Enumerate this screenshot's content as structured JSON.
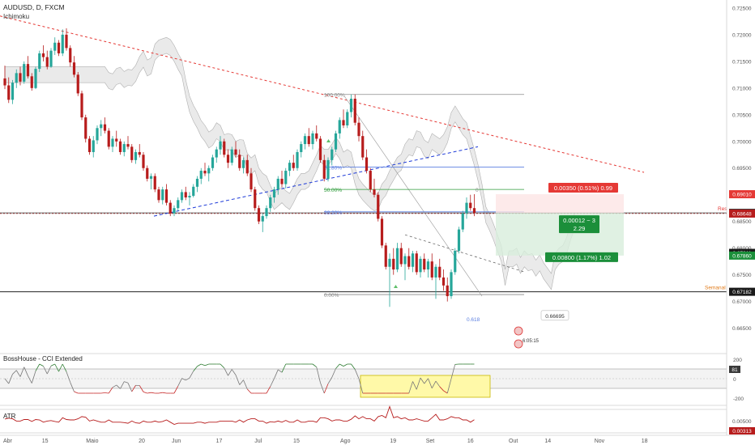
{
  "header": {
    "symbol": "AUDUSD, D, FXCM",
    "indicator": "Ichimoku"
  },
  "colors": {
    "up": "#26a69a",
    "down": "#b71c1c",
    "cloud": "#d9d9d9",
    "downtrend": "#e53935",
    "uptrend": "#1e3bd8",
    "cci_up": "#2e7d32",
    "cci_down": "#c62828",
    "atr": "#b71c1c",
    "highlight": "#fff9a8"
  },
  "panels": {
    "cci_label": "BossHouse - CCI Extended",
    "atr_label": "ATR"
  },
  "chart_data": {
    "type": "candlestick",
    "y_axis": {
      "ylim": [
        0.6613,
        0.7265
      ],
      "ticks": [
        "0.72500",
        "0.72000",
        "0.71500",
        "0.71000",
        "0.70500",
        "0.70000",
        "0.69500",
        "0.69000",
        "0.68500",
        "0.68000",
        "0.67500",
        "0.67000",
        "0.66500",
        "0.66000"
      ]
    },
    "x_axis": {
      "ticks": [
        {
          "label": "Abr",
          "day": 0
        },
        {
          "label": "15",
          "day": 14
        },
        {
          "label": "Maio",
          "day": 30
        },
        {
          "label": "20",
          "day": 49
        },
        {
          "label": "Jun",
          "day": 61
        },
        {
          "label": "17",
          "day": 77
        },
        {
          "label": "Jul",
          "day": 91
        },
        {
          "label": "15",
          "day": 105
        },
        {
          "label": "Ago",
          "day": 122
        },
        {
          "label": "19",
          "day": 140
        },
        {
          "label": "Set",
          "day": 153
        },
        {
          "label": "16",
          "day": 168
        },
        {
          "label": "Out",
          "day": 183
        },
        {
          "label": "14",
          "day": 196
        },
        {
          "label": "Nov",
          "day": 214
        },
        {
          "label": "18",
          "day": 231
        }
      ]
    },
    "price_labels": [
      {
        "text": "0.69010",
        "value": 0.6901,
        "color": "#e53935"
      },
      {
        "text": "0.68660",
        "value": 0.6866,
        "color": "#1a1a1a"
      },
      {
        "text": "0.68648",
        "value": 0.68648,
        "color": "#b71c1c"
      },
      {
        "text": "0.67911",
        "value": 0.67911,
        "color": "#1a1a1a"
      },
      {
        "text": "0.67860",
        "value": 0.6786,
        "color": "#1b8f3a"
      },
      {
        "text": "0.67182",
        "value": 0.67182,
        "color": "#1a1a1a"
      }
    ],
    "fibonacci": [
      {
        "label": "100.00%",
        "value": 0.7088,
        "color": "#8a8a8a"
      },
      {
        "label": "61.80%",
        "value": 0.6952,
        "color": "#5b7fe0"
      },
      {
        "label": "50.00%",
        "value": 0.691,
        "color": "#2e9b3a"
      },
      {
        "label": "38.20%",
        "value": 0.6868,
        "color": "#5b7fe0"
      },
      {
        "label": "0.00%",
        "value": 0.6713,
        "color": "#8a8a8a"
      }
    ],
    "annotations": {
      "risk": "0.00350 (0.51%) 0.99",
      "entry_line1": "0.00012 ~ 3",
      "entry_line2": "2.29",
      "reward": "0.00800 (1.17%) 1.02",
      "res": "Res",
      "semanal": "Semanal",
      "zero_marker": "0",
      "fib_618": "0.618",
      "box_value": "0.66695",
      "event_text": "6:05:15"
    },
    "cci": {
      "ticks": [
        "200",
        "0",
        "-200"
      ],
      "current": "81"
    },
    "atr": {
      "ticks": [
        "0.00500",
        "0.00313"
      ]
    },
    "candles": [
      [
        0.7118,
        0.7142,
        0.7098,
        0.7105
      ],
      [
        0.7105,
        0.712,
        0.7072,
        0.7078
      ],
      [
        0.7078,
        0.7115,
        0.707,
        0.711
      ],
      [
        0.711,
        0.7135,
        0.71,
        0.7128
      ],
      [
        0.7128,
        0.714,
        0.7105,
        0.7112
      ],
      [
        0.7112,
        0.715,
        0.7108,
        0.7145
      ],
      [
        0.7145,
        0.716,
        0.7118,
        0.7122
      ],
      [
        0.7122,
        0.7128,
        0.7095,
        0.71
      ],
      [
        0.71,
        0.714,
        0.7098,
        0.7136
      ],
      [
        0.7136,
        0.717,
        0.713,
        0.7165
      ],
      [
        0.7165,
        0.718,
        0.715,
        0.7158
      ],
      [
        0.7158,
        0.717,
        0.7135,
        0.714
      ],
      [
        0.714,
        0.7175,
        0.7138,
        0.717
      ],
      [
        0.717,
        0.7195,
        0.7162,
        0.7185
      ],
      [
        0.7185,
        0.719,
        0.716,
        0.7165
      ],
      [
        0.7165,
        0.721,
        0.716,
        0.72
      ],
      [
        0.72,
        0.7212,
        0.717,
        0.7175
      ],
      [
        0.7175,
        0.718,
        0.714,
        0.7148
      ],
      [
        0.7148,
        0.716,
        0.712,
        0.7125
      ],
      [
        0.7125,
        0.713,
        0.7085,
        0.709
      ],
      [
        0.709,
        0.7095,
        0.704,
        0.7045
      ],
      [
        0.7045,
        0.705,
        0.6998,
        0.7005
      ],
      [
        0.7005,
        0.701,
        0.6975,
        0.698
      ],
      [
        0.698,
        0.701,
        0.697,
        0.7002
      ],
      [
        0.7002,
        0.703,
        0.6995,
        0.7025
      ],
      [
        0.7025,
        0.704,
        0.701,
        0.7032
      ],
      [
        0.7032,
        0.7045,
        0.7015,
        0.702
      ],
      [
        0.702,
        0.7025,
        0.6985,
        0.699
      ],
      [
        0.699,
        0.701,
        0.698,
        0.7005
      ],
      [
        0.7005,
        0.702,
        0.699,
        0.7
      ],
      [
        0.7,
        0.7005,
        0.6975,
        0.698
      ],
      [
        0.698,
        0.7,
        0.6972,
        0.6995
      ],
      [
        0.6995,
        0.701,
        0.6985,
        0.699
      ],
      [
        0.699,
        0.6995,
        0.696,
        0.6965
      ],
      [
        0.6965,
        0.6985,
        0.6958,
        0.698
      ],
      [
        0.698,
        0.6995,
        0.697,
        0.6975
      ],
      [
        0.6975,
        0.698,
        0.6945,
        0.695
      ],
      [
        0.695,
        0.6955,
        0.6925,
        0.693
      ],
      [
        0.693,
        0.694,
        0.691,
        0.6935
      ],
      [
        0.6935,
        0.694,
        0.6905,
        0.691
      ],
      [
        0.691,
        0.6915,
        0.6885,
        0.689
      ],
      [
        0.689,
        0.6915,
        0.6882,
        0.691
      ],
      [
        0.691,
        0.692,
        0.688,
        0.6885
      ],
      [
        0.6885,
        0.689,
        0.686,
        0.6865
      ],
      [
        0.6865,
        0.688,
        0.686,
        0.6875
      ],
      [
        0.6875,
        0.6895,
        0.687,
        0.689
      ],
      [
        0.689,
        0.691,
        0.6885,
        0.6905
      ],
      [
        0.6905,
        0.6915,
        0.689,
        0.6895
      ],
      [
        0.6895,
        0.6905,
        0.688,
        0.6898
      ],
      [
        0.6898,
        0.692,
        0.6895,
        0.6915
      ],
      [
        0.6915,
        0.6935,
        0.6905,
        0.693
      ],
      [
        0.693,
        0.695,
        0.692,
        0.6945
      ],
      [
        0.6945,
        0.696,
        0.6935,
        0.694
      ],
      [
        0.694,
        0.6955,
        0.6925,
        0.695
      ],
      [
        0.695,
        0.6975,
        0.6945,
        0.697
      ],
      [
        0.697,
        0.699,
        0.696,
        0.6985
      ],
      [
        0.6985,
        0.701,
        0.6975,
        0.7
      ],
      [
        0.7,
        0.7005,
        0.697,
        0.6975
      ],
      [
        0.6975,
        0.6985,
        0.695,
        0.696
      ],
      [
        0.696,
        0.699,
        0.6955,
        0.6985
      ],
      [
        0.6985,
        0.7,
        0.697,
        0.6975
      ],
      [
        0.6975,
        0.6985,
        0.6945,
        0.695
      ],
      [
        0.695,
        0.697,
        0.694,
        0.6965
      ],
      [
        0.6965,
        0.6975,
        0.6935,
        0.694
      ],
      [
        0.694,
        0.695,
        0.6905,
        0.691
      ],
      [
        0.691,
        0.6915,
        0.687,
        0.6875
      ],
      [
        0.6875,
        0.688,
        0.6845,
        0.685
      ],
      [
        0.685,
        0.6865,
        0.683,
        0.686
      ],
      [
        0.686,
        0.688,
        0.6855,
        0.6875
      ],
      [
        0.6875,
        0.69,
        0.6868,
        0.6895
      ],
      [
        0.6895,
        0.6915,
        0.6885,
        0.691
      ],
      [
        0.691,
        0.6935,
        0.69,
        0.693
      ],
      [
        0.693,
        0.6945,
        0.6915,
        0.692
      ],
      [
        0.692,
        0.695,
        0.6912,
        0.6945
      ],
      [
        0.6945,
        0.6965,
        0.6935,
        0.696
      ],
      [
        0.696,
        0.6975,
        0.6945,
        0.695
      ],
      [
        0.695,
        0.6985,
        0.6945,
        0.698
      ],
      [
        0.698,
        0.7,
        0.697,
        0.6995
      ],
      [
        0.6995,
        0.7015,
        0.6985,
        0.701
      ],
      [
        0.701,
        0.7025,
        0.699,
        0.6995
      ],
      [
        0.6995,
        0.702,
        0.6985,
        0.7015
      ],
      [
        0.7015,
        0.703,
        0.7,
        0.7005
      ],
      [
        0.7005,
        0.701,
        0.696,
        0.6965
      ],
      [
        0.6965,
        0.6975,
        0.6925,
        0.693
      ],
      [
        0.693,
        0.697,
        0.6925,
        0.6965
      ],
      [
        0.6965,
        0.699,
        0.6955,
        0.6985
      ],
      [
        0.6985,
        0.702,
        0.698,
        0.7015
      ],
      [
        0.7015,
        0.7045,
        0.7005,
        0.704
      ],
      [
        0.704,
        0.706,
        0.7025,
        0.703
      ],
      [
        0.703,
        0.706,
        0.7025,
        0.7055
      ],
      [
        0.7055,
        0.7088,
        0.7045,
        0.708
      ],
      [
        0.708,
        0.7088,
        0.703,
        0.7035
      ],
      [
        0.7035,
        0.7045,
        0.7,
        0.701
      ],
      [
        0.701,
        0.702,
        0.6965,
        0.697
      ],
      [
        0.697,
        0.6985,
        0.694,
        0.6945
      ],
      [
        0.6945,
        0.695,
        0.6905,
        0.691
      ],
      [
        0.691,
        0.693,
        0.6895,
        0.69
      ],
      [
        0.69,
        0.6905,
        0.685,
        0.6855
      ],
      [
        0.6855,
        0.686,
        0.68,
        0.6805
      ],
      [
        0.6805,
        0.681,
        0.676,
        0.6765
      ],
      [
        0.6765,
        0.679,
        0.669,
        0.678
      ],
      [
        0.678,
        0.68,
        0.675,
        0.676
      ],
      [
        0.676,
        0.681,
        0.6755,
        0.68
      ],
      [
        0.68,
        0.681,
        0.6765,
        0.677
      ],
      [
        0.677,
        0.679,
        0.674,
        0.6785
      ],
      [
        0.6785,
        0.68,
        0.676,
        0.6765
      ],
      [
        0.6765,
        0.6795,
        0.6755,
        0.679
      ],
      [
        0.679,
        0.6795,
        0.675,
        0.6755
      ],
      [
        0.6755,
        0.6785,
        0.6745,
        0.678
      ],
      [
        0.678,
        0.679,
        0.6755,
        0.676
      ],
      [
        0.676,
        0.678,
        0.6745,
        0.6775
      ],
      [
        0.6775,
        0.679,
        0.674,
        0.6745
      ],
      [
        0.6745,
        0.677,
        0.6705,
        0.6765
      ],
      [
        0.6765,
        0.678,
        0.674,
        0.6745
      ],
      [
        0.6745,
        0.676,
        0.672,
        0.673
      ],
      [
        0.673,
        0.6745,
        0.67,
        0.671
      ],
      [
        0.671,
        0.676,
        0.6705,
        0.6755
      ],
      [
        0.6755,
        0.68,
        0.675,
        0.6795
      ],
      [
        0.6795,
        0.684,
        0.679,
        0.6835
      ],
      [
        0.6835,
        0.687,
        0.683,
        0.6865
      ],
      [
        0.6865,
        0.6895,
        0.6855,
        0.6885
      ],
      [
        0.6885,
        0.69,
        0.687,
        0.6875
      ],
      [
        0.6875,
        0.6901,
        0.686,
        0.6866
      ]
    ]
  }
}
